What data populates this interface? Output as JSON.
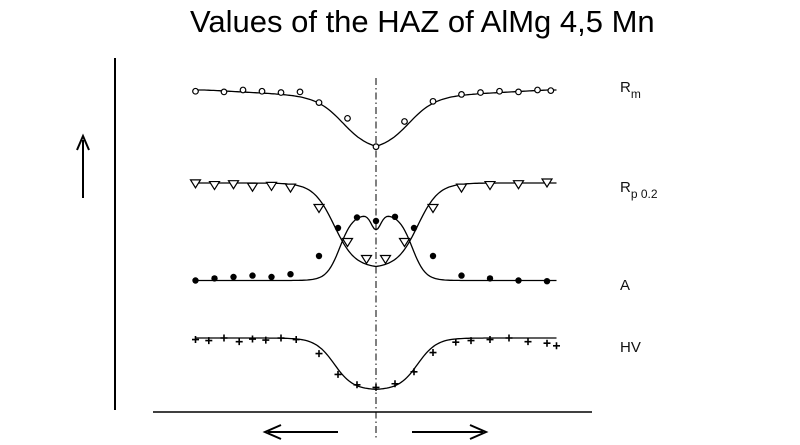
{
  "title": "Values of the HAZ of AlMg 4,5 Mn",
  "chart_data": {
    "type": "line",
    "title": "Values of the HAZ of AlMg 4,5 Mn",
    "xlabel": "",
    "ylabel": "",
    "ticks": "none",
    "center_line": "dash-dot vertical at weld center",
    "series": [
      {
        "name": "Rm",
        "label_main": "R",
        "label_sub": "m",
        "marker": "open-circle",
        "x": [
          -0.95,
          -0.8,
          -0.7,
          -0.6,
          -0.5,
          -0.4,
          -0.3,
          -0.15,
          0.0,
          0.15,
          0.3,
          0.45,
          0.55,
          0.65,
          0.75,
          0.85,
          0.92
        ],
        "values": [
          0.98,
          0.97,
          1.0,
          0.98,
          0.96,
          0.97,
          0.8,
          0.55,
          0.1,
          0.5,
          0.82,
          0.93,
          0.96,
          0.98,
          0.97,
          1.0,
          0.99
        ]
      },
      {
        "name": "Rp 0.2",
        "label_main": "R",
        "label_sub": "p  0.2",
        "marker": "open-triangle-down",
        "x": [
          -0.95,
          -0.85,
          -0.75,
          -0.65,
          -0.55,
          -0.45,
          -0.3,
          -0.15,
          -0.05,
          0.05,
          0.15,
          0.3,
          0.45,
          0.6,
          0.75,
          0.9
        ],
        "values": [
          0.99,
          0.97,
          0.98,
          0.95,
          0.96,
          0.94,
          0.7,
          0.3,
          0.1,
          0.1,
          0.3,
          0.7,
          0.94,
          0.97,
          0.98,
          1.0
        ]
      },
      {
        "name": "A",
        "label_main": "A",
        "label_sub": "",
        "marker": "filled-circle",
        "x": [
          -0.95,
          -0.85,
          -0.75,
          -0.65,
          -0.55,
          -0.45,
          -0.3,
          -0.2,
          -0.1,
          0.0,
          0.1,
          0.2,
          0.3,
          0.45,
          0.6,
          0.75,
          0.9
        ],
        "values": [
          0.05,
          0.08,
          0.1,
          0.12,
          0.1,
          0.14,
          0.4,
          0.8,
          0.95,
          0.9,
          0.96,
          0.8,
          0.4,
          0.12,
          0.08,
          0.05,
          0.04
        ]
      },
      {
        "name": "HV",
        "label_main": "HV",
        "label_sub": "",
        "marker": "plus",
        "x": [
          -0.95,
          -0.88,
          -0.8,
          -0.72,
          -0.65,
          -0.58,
          -0.5,
          -0.42,
          -0.3,
          -0.2,
          -0.1,
          0.0,
          0.1,
          0.2,
          0.3,
          0.42,
          0.5,
          0.6,
          0.7,
          0.8,
          0.9,
          0.95
        ],
        "values": [
          0.97,
          0.95,
          1.0,
          0.93,
          0.98,
          0.96,
          1.0,
          0.97,
          0.7,
          0.3,
          0.1,
          0.05,
          0.12,
          0.35,
          0.72,
          0.92,
          0.95,
          0.97,
          1.0,
          0.93,
          0.9,
          0.85
        ]
      }
    ]
  }
}
